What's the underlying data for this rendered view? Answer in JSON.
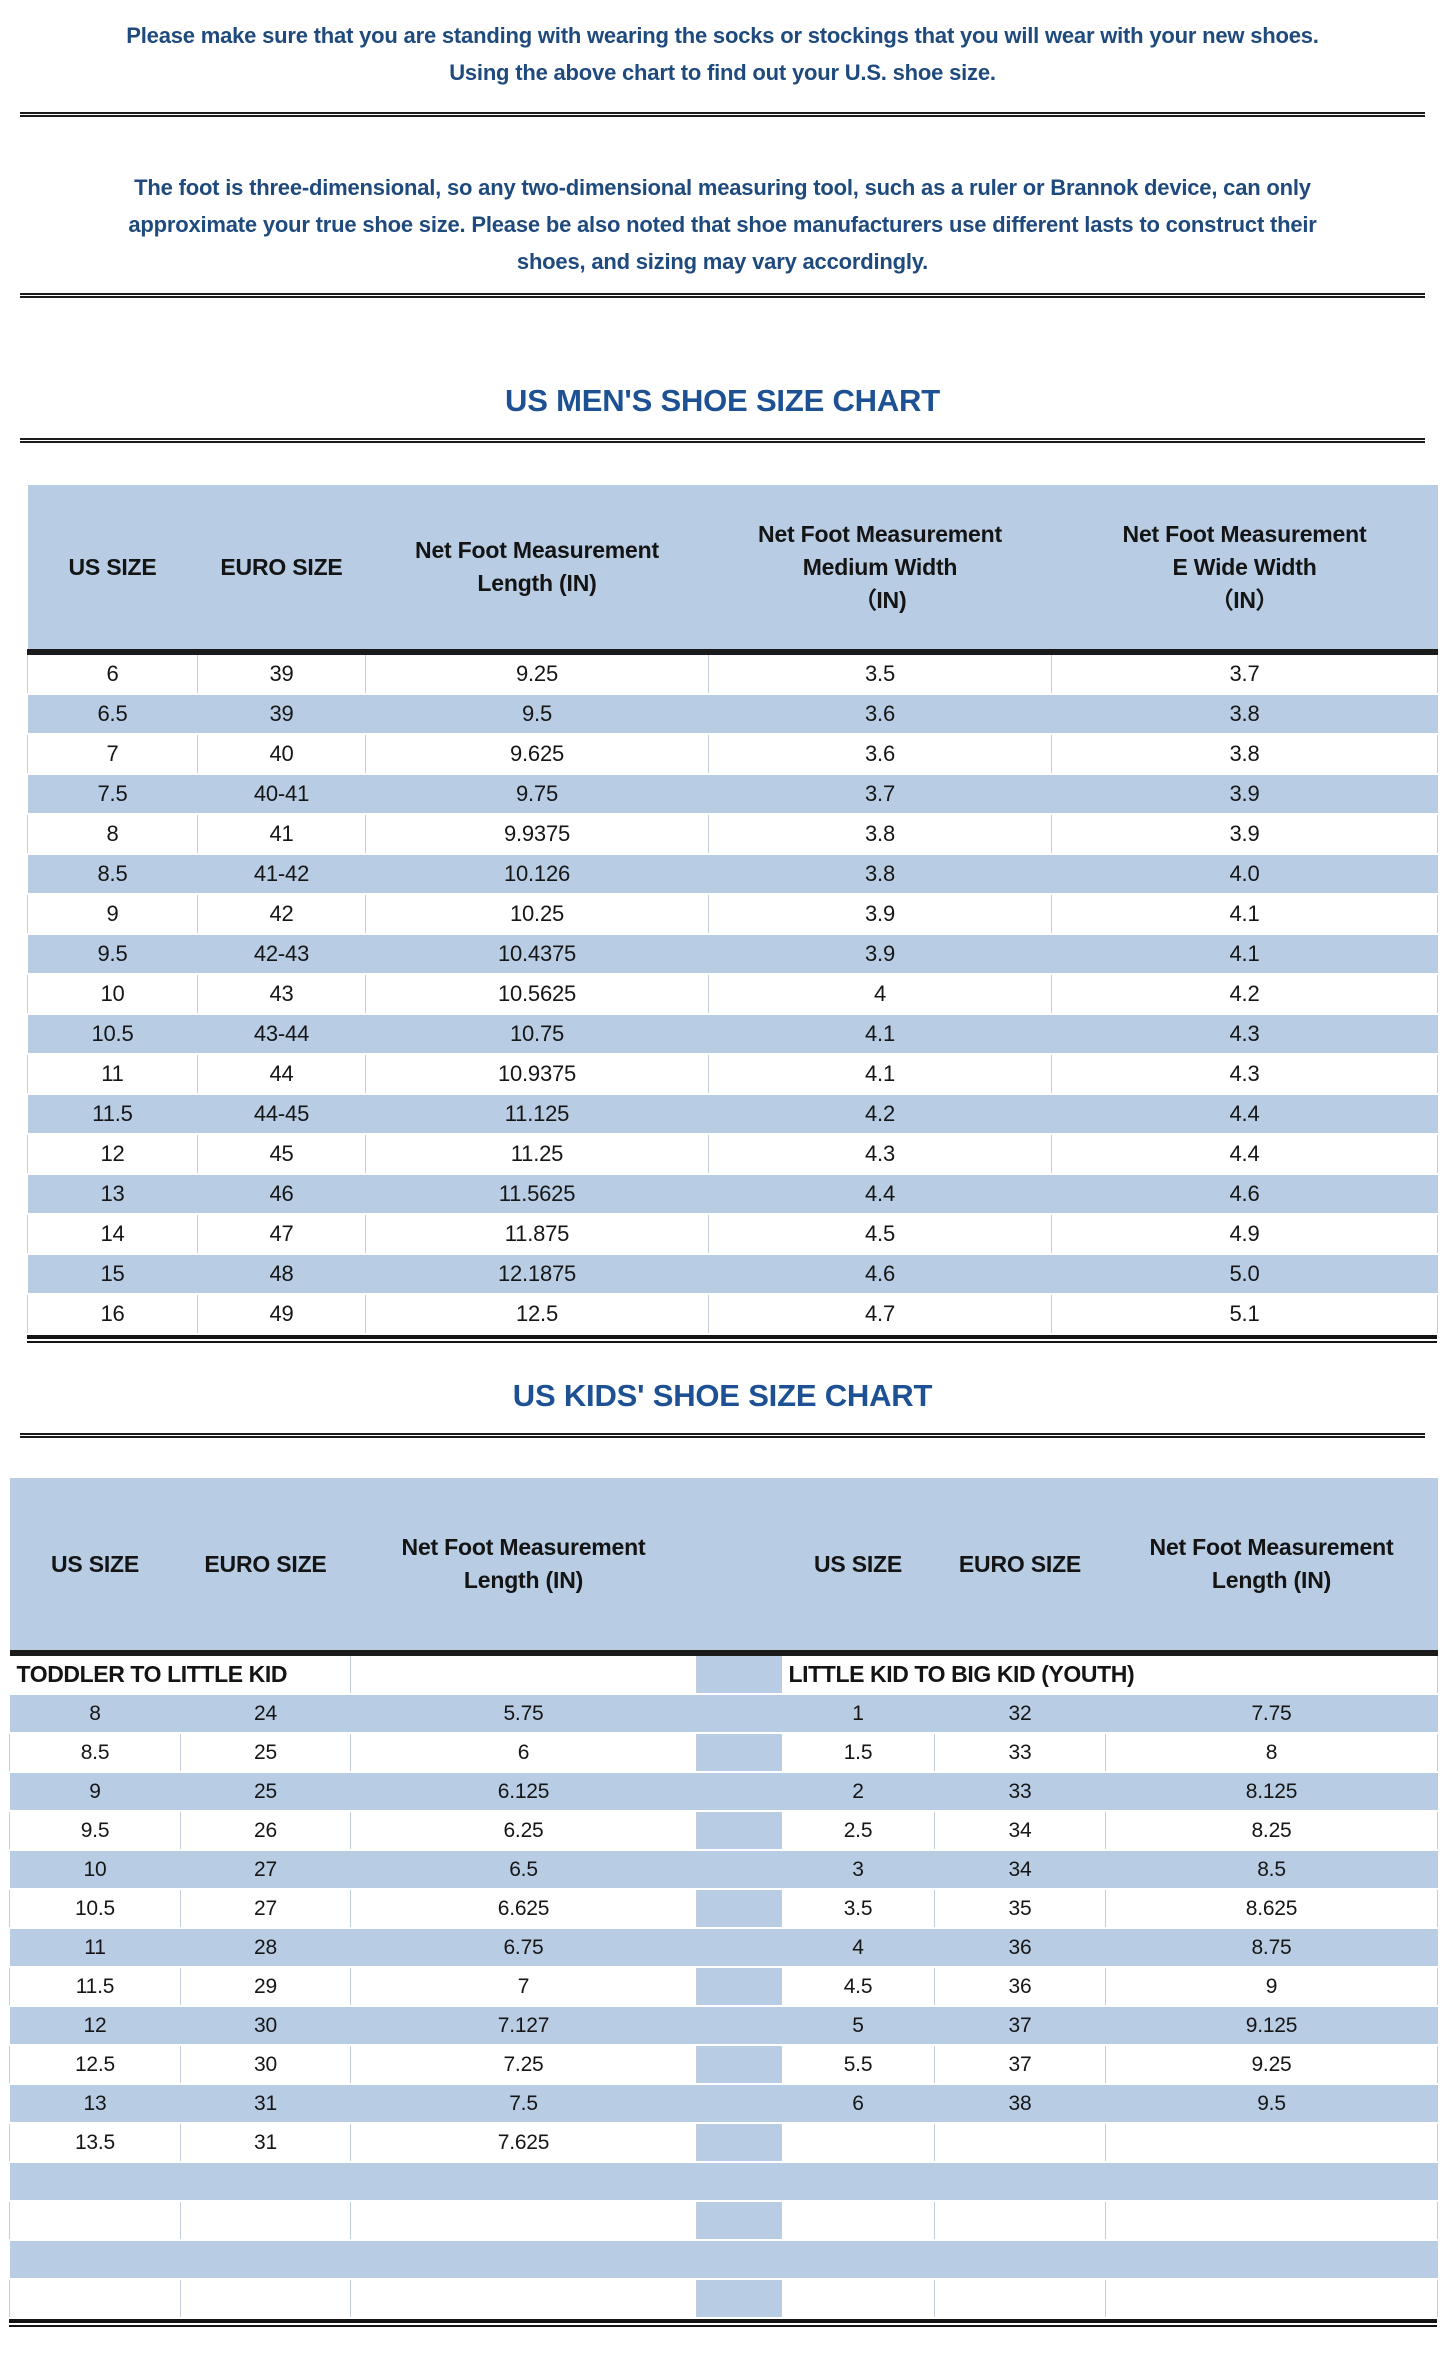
{
  "intro": {
    "paragraph1": [
      "Please make sure that you are standing with wearing the socks or stockings that you will wear with your new shoes.",
      "Using the above chart to find out your U.S. shoe size."
    ],
    "paragraph2": [
      "The foot is three-dimensional, so any two-dimensional measuring tool, such as a ruler or Brannok device, can only",
      "approximate your true shoe size. Please be also noted that shoe manufacturers use different lasts to construct their",
      "shoes, and sizing may vary accordingly."
    ]
  },
  "mens_chart": {
    "title": "US MEN'S SHOE SIZE CHART",
    "headers": [
      [
        "US SIZE"
      ],
      [
        "EURO SIZE"
      ],
      [
        "Net Foot Measurement",
        "Length (IN)"
      ],
      [
        "Net Foot Measurement",
        "Medium Width",
        "（IN)"
      ],
      [
        "Net Foot Measurement",
        "E Wide Width",
        "（IN）"
      ]
    ],
    "rows": [
      [
        "6",
        "39",
        "9.25",
        "3.5",
        "3.7"
      ],
      [
        "6.5",
        "39",
        "9.5",
        "3.6",
        "3.8"
      ],
      [
        "7",
        "40",
        "9.625",
        "3.6",
        "3.8"
      ],
      [
        "7.5",
        "40-41",
        "9.75",
        "3.7",
        "3.9"
      ],
      [
        "8",
        "41",
        "9.9375",
        "3.8",
        "3.9"
      ],
      [
        "8.5",
        "41-42",
        "10.126",
        "3.8",
        "4.0"
      ],
      [
        "9",
        "42",
        "10.25",
        "3.9",
        "4.1"
      ],
      [
        "9.5",
        "42-43",
        "10.4375",
        "3.9",
        "4.1"
      ],
      [
        "10",
        "43",
        "10.5625",
        "4",
        "4.2"
      ],
      [
        "10.5",
        "43-44",
        "10.75",
        "4.1",
        "4.3"
      ],
      [
        "11",
        "44",
        "10.9375",
        "4.1",
        "4.3"
      ],
      [
        "11.5",
        "44-45",
        "11.125",
        "4.2",
        "4.4"
      ],
      [
        "12",
        "45",
        "11.25",
        "4.3",
        "4.4"
      ],
      [
        "13",
        "46",
        "11.5625",
        "4.4",
        "4.6"
      ],
      [
        "14",
        "47",
        "11.875",
        "4.5",
        "4.9"
      ],
      [
        "15",
        "48",
        "12.1875",
        "4.6",
        "5.0"
      ],
      [
        "16",
        "49",
        "12.5",
        "4.7",
        "5.1"
      ]
    ]
  },
  "kids_chart": {
    "title": "US KIDS' SHOE SIZE CHART",
    "headers_left": [
      [
        "US SIZE"
      ],
      [
        "EURO SIZE"
      ],
      [
        "Net Foot Measurement",
        "Length (IN)"
      ]
    ],
    "headers_right": [
      [
        "US SIZE"
      ],
      [
        "EURO SIZE"
      ],
      [
        "Net Foot Measurement",
        "Length (IN)"
      ]
    ],
    "left_group_label": "TODDLER TO LITTLE KID",
    "right_group_label": "LITTLE KID TO BIG KID (YOUTH)",
    "rows": [
      [
        "8",
        "24",
        "5.75",
        "1",
        "32",
        "7.75"
      ],
      [
        "8.5",
        "25",
        "6",
        "1.5",
        "33",
        "8"
      ],
      [
        "9",
        "25",
        "6.125",
        "2",
        "33",
        "8.125"
      ],
      [
        "9.5",
        "26",
        "6.25",
        "2.5",
        "34",
        "8.25"
      ],
      [
        "10",
        "27",
        "6.5",
        "3",
        "34",
        "8.5"
      ],
      [
        "10.5",
        "27",
        "6.625",
        "3.5",
        "35",
        "8.625"
      ],
      [
        "11",
        "28",
        "6.75",
        "4",
        "36",
        "8.75"
      ],
      [
        "11.5",
        "29",
        "7",
        "4.5",
        "36",
        "9"
      ],
      [
        "12",
        "30",
        "7.127",
        "5",
        "37",
        "9.125"
      ],
      [
        "12.5",
        "30",
        "7.25",
        "5.5",
        "37",
        "9.25"
      ],
      [
        "13",
        "31",
        "7.5",
        "6",
        "38",
        "9.5"
      ],
      [
        "13.5",
        "31",
        "7.625",
        "",
        "",
        ""
      ]
    ],
    "trailing_empty_rows": 4
  },
  "colors": {
    "row_blue": "#b8cce4",
    "intro_text_blue": "#1f4a7d",
    "title_blue": "#1d5194",
    "data_text": "#161616",
    "grid_line": "#c3cedd",
    "rule_black": "#1b1b1b"
  }
}
